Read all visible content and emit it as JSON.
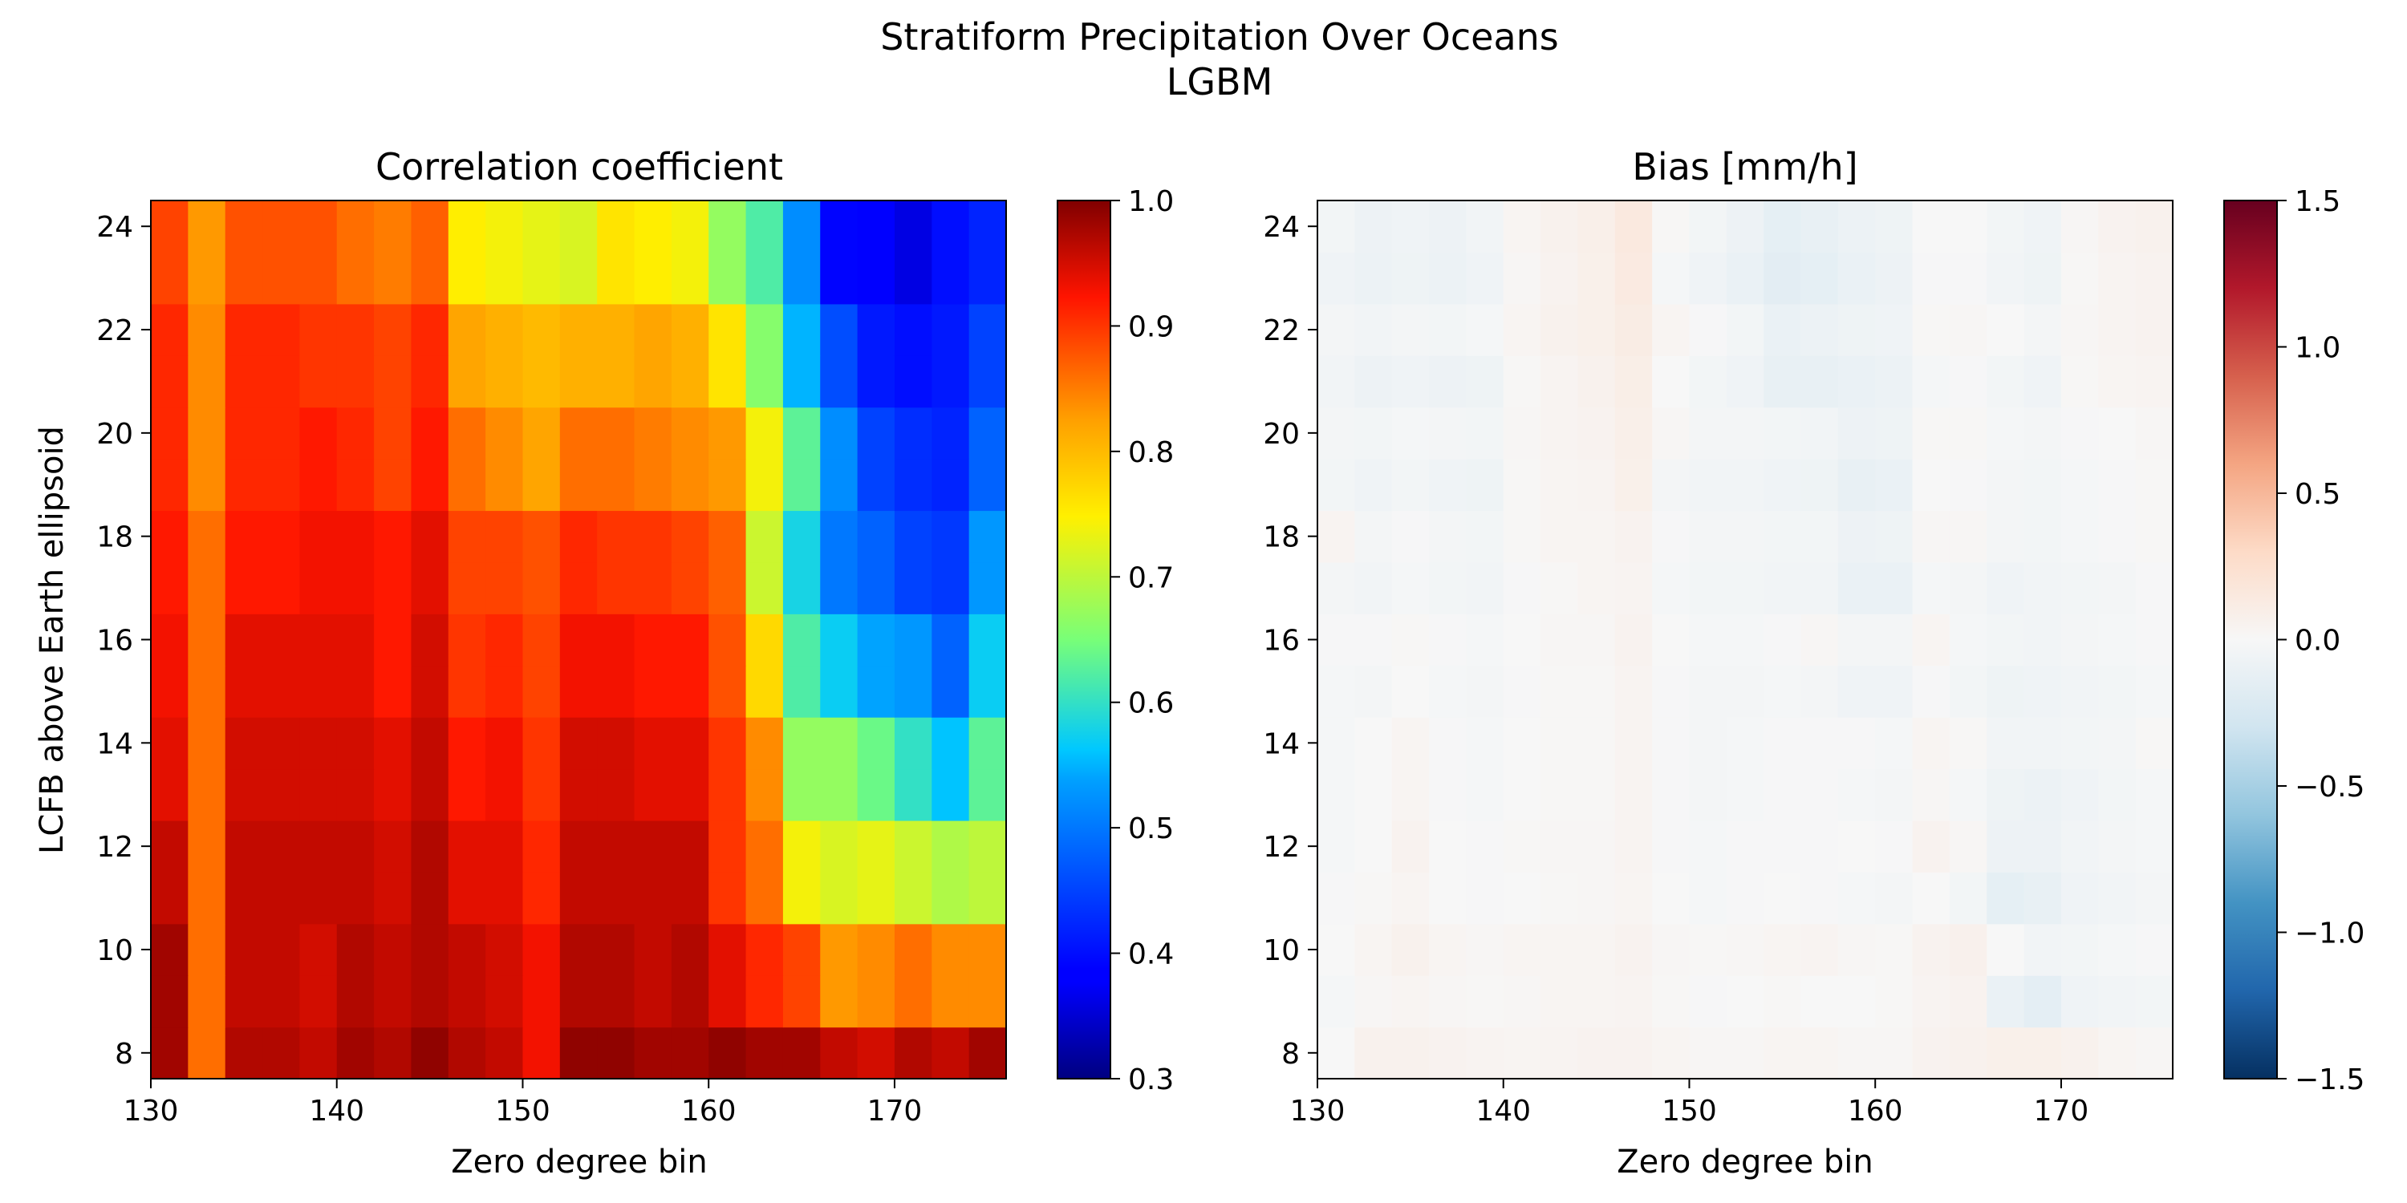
{
  "figure": {
    "title_line1": "Stratiform Precipitation Over Oceans",
    "title_line2": "LGBM"
  },
  "chart_data": [
    {
      "type": "heatmap",
      "title": "Correlation coefficient",
      "xlabel": "Zero degree bin",
      "ylabel": "LCFB above Earth ellipsoid",
      "xlim": [
        130,
        176
      ],
      "ylim": [
        7.5,
        24.5
      ],
      "x_bin_edges_start": 130,
      "x_bin_width": 2,
      "y_bin_centers": [
        8,
        9,
        10,
        11,
        12,
        13,
        14,
        15,
        16,
        17,
        18,
        19,
        20,
        21,
        22,
        23,
        24
      ],
      "xticks": [
        130,
        140,
        150,
        160,
        170
      ],
      "yticks": [
        8,
        10,
        12,
        14,
        16,
        18,
        20,
        22,
        24
      ],
      "colormap": "jet",
      "colorbar": {
        "vmin": 0.3,
        "vmax": 1.0,
        "ticks": [
          "0.3",
          "0.4",
          "0.5",
          "0.6",
          "0.7",
          "0.8",
          "0.9",
          "1.0"
        ]
      },
      "z_rows_bottom_to_top": [
        [
          0.98,
          0.86,
          0.97,
          0.97,
          0.96,
          0.98,
          0.97,
          0.99,
          0.97,
          0.96,
          0.93,
          0.99,
          0.99,
          0.98,
          0.98,
          0.99,
          0.98,
          0.98,
          0.96,
          0.95,
          0.97,
          0.96,
          0.98
        ],
        [
          0.98,
          0.86,
          0.96,
          0.96,
          0.95,
          0.97,
          0.96,
          0.97,
          0.96,
          0.95,
          0.93,
          0.97,
          0.97,
          0.96,
          0.97,
          0.94,
          0.91,
          0.89,
          0.83,
          0.84,
          0.86,
          0.84,
          0.84
        ],
        [
          0.98,
          0.86,
          0.96,
          0.96,
          0.95,
          0.97,
          0.96,
          0.97,
          0.96,
          0.95,
          0.93,
          0.97,
          0.97,
          0.96,
          0.97,
          0.94,
          0.91,
          0.89,
          0.83,
          0.84,
          0.86,
          0.84,
          0.84
        ],
        [
          0.96,
          0.86,
          0.96,
          0.96,
          0.96,
          0.96,
          0.95,
          0.97,
          0.94,
          0.94,
          0.91,
          0.96,
          0.96,
          0.96,
          0.96,
          0.9,
          0.86,
          0.74,
          0.72,
          0.73,
          0.71,
          0.69,
          0.7
        ],
        [
          0.96,
          0.86,
          0.96,
          0.96,
          0.96,
          0.96,
          0.95,
          0.97,
          0.94,
          0.94,
          0.91,
          0.96,
          0.96,
          0.96,
          0.96,
          0.9,
          0.86,
          0.74,
          0.72,
          0.73,
          0.71,
          0.69,
          0.7
        ],
        [
          0.94,
          0.86,
          0.95,
          0.95,
          0.95,
          0.95,
          0.94,
          0.96,
          0.92,
          0.93,
          0.9,
          0.95,
          0.95,
          0.94,
          0.94,
          0.9,
          0.84,
          0.67,
          0.67,
          0.64,
          0.6,
          0.56,
          0.63
        ],
        [
          0.94,
          0.86,
          0.95,
          0.95,
          0.95,
          0.95,
          0.94,
          0.96,
          0.92,
          0.93,
          0.9,
          0.95,
          0.95,
          0.94,
          0.94,
          0.9,
          0.84,
          0.67,
          0.67,
          0.64,
          0.6,
          0.56,
          0.63
        ],
        [
          0.93,
          0.86,
          0.94,
          0.94,
          0.94,
          0.94,
          0.92,
          0.95,
          0.9,
          0.91,
          0.89,
          0.93,
          0.93,
          0.92,
          0.92,
          0.88,
          0.77,
          0.62,
          0.57,
          0.54,
          0.53,
          0.48,
          0.57
        ],
        [
          0.93,
          0.86,
          0.94,
          0.94,
          0.94,
          0.94,
          0.92,
          0.95,
          0.9,
          0.91,
          0.89,
          0.93,
          0.93,
          0.92,
          0.92,
          0.88,
          0.77,
          0.62,
          0.57,
          0.54,
          0.53,
          0.48,
          0.57
        ],
        [
          0.92,
          0.86,
          0.92,
          0.92,
          0.93,
          0.93,
          0.92,
          0.94,
          0.89,
          0.89,
          0.88,
          0.91,
          0.9,
          0.9,
          0.89,
          0.87,
          0.71,
          0.58,
          0.5,
          0.48,
          0.45,
          0.44,
          0.53
        ],
        [
          0.92,
          0.86,
          0.92,
          0.92,
          0.93,
          0.93,
          0.92,
          0.94,
          0.89,
          0.89,
          0.88,
          0.91,
          0.9,
          0.9,
          0.89,
          0.87,
          0.71,
          0.58,
          0.5,
          0.48,
          0.45,
          0.44,
          0.53
        ],
        [
          0.91,
          0.84,
          0.91,
          0.91,
          0.92,
          0.91,
          0.89,
          0.92,
          0.86,
          0.84,
          0.82,
          0.86,
          0.86,
          0.85,
          0.84,
          0.83,
          0.74,
          0.63,
          0.52,
          0.45,
          0.43,
          0.42,
          0.48
        ],
        [
          0.91,
          0.84,
          0.91,
          0.91,
          0.92,
          0.91,
          0.89,
          0.92,
          0.86,
          0.84,
          0.82,
          0.86,
          0.86,
          0.85,
          0.84,
          0.83,
          0.74,
          0.63,
          0.52,
          0.45,
          0.43,
          0.42,
          0.48
        ],
        [
          0.91,
          0.84,
          0.91,
          0.91,
          0.9,
          0.9,
          0.89,
          0.91,
          0.82,
          0.81,
          0.8,
          0.81,
          0.81,
          0.82,
          0.81,
          0.76,
          0.66,
          0.55,
          0.46,
          0.41,
          0.4,
          0.41,
          0.45
        ],
        [
          0.91,
          0.84,
          0.91,
          0.91,
          0.9,
          0.9,
          0.89,
          0.91,
          0.82,
          0.81,
          0.8,
          0.81,
          0.81,
          0.82,
          0.81,
          0.76,
          0.66,
          0.55,
          0.46,
          0.41,
          0.4,
          0.41,
          0.45
        ],
        [
          0.89,
          0.83,
          0.88,
          0.88,
          0.88,
          0.86,
          0.85,
          0.87,
          0.75,
          0.74,
          0.73,
          0.72,
          0.76,
          0.75,
          0.74,
          0.67,
          0.62,
          0.52,
          0.39,
          0.38,
          0.36,
          0.4,
          0.42
        ],
        [
          0.89,
          0.83,
          0.88,
          0.88,
          0.88,
          0.86,
          0.85,
          0.87,
          0.75,
          0.74,
          0.73,
          0.72,
          0.76,
          0.75,
          0.74,
          0.67,
          0.62,
          0.52,
          0.39,
          0.38,
          0.36,
          0.4,
          0.42
        ]
      ]
    },
    {
      "type": "heatmap",
      "title": "Bias [mm/h]",
      "xlabel": "Zero degree bin",
      "ylabel": "",
      "xlim": [
        130,
        176
      ],
      "ylim": [
        7.5,
        24.5
      ],
      "x_bin_edges_start": 130,
      "x_bin_width": 2,
      "y_bin_centers": [
        8,
        9,
        10,
        11,
        12,
        13,
        14,
        15,
        16,
        17,
        18,
        19,
        20,
        21,
        22,
        23,
        24
      ],
      "xticks": [
        130,
        140,
        150,
        160,
        170
      ],
      "yticks": [
        8,
        10,
        12,
        14,
        16,
        18,
        20,
        22,
        24
      ],
      "colormap": "RdBu_r",
      "colorbar": {
        "vmin": -1.5,
        "vmax": 1.5,
        "ticks": [
          "1.5",
          "1.0",
          "0.5",
          "0.0",
          "−0.5",
          "−1.0",
          "−1.5"
        ]
      },
      "z_rows_bottom_to_top": [
        [
          0.0,
          0.06,
          0.06,
          0.05,
          0.04,
          0.03,
          0.04,
          0.05,
          0.05,
          0.03,
          0.02,
          0.02,
          0.03,
          0.03,
          0.02,
          0.02,
          0.05,
          0.06,
          0.08,
          0.08,
          0.06,
          0.03,
          0.02
        ],
        [
          -0.02,
          0.02,
          0.03,
          0.02,
          0.01,
          0.02,
          0.03,
          0.03,
          0.04,
          0.01,
          -0.01,
          0.0,
          0.01,
          0.0,
          0.0,
          0.01,
          0.04,
          0.05,
          -0.1,
          -0.15,
          -0.06,
          -0.05,
          -0.04
        ],
        [
          0.0,
          0.03,
          0.06,
          0.03,
          0.02,
          0.03,
          0.03,
          0.03,
          0.05,
          0.02,
          0.01,
          0.02,
          0.03,
          0.04,
          0.02,
          0.01,
          0.05,
          0.07,
          0.0,
          -0.05,
          -0.04,
          -0.02,
          -0.01
        ],
        [
          -0.01,
          0.01,
          0.03,
          0.0,
          -0.01,
          0.0,
          0.01,
          0.02,
          0.03,
          0.0,
          -0.02,
          -0.01,
          0.0,
          -0.01,
          -0.02,
          -0.03,
          0.0,
          -0.04,
          -0.14,
          -0.12,
          -0.06,
          -0.05,
          -0.03
        ],
        [
          -0.02,
          0.0,
          0.05,
          0.0,
          -0.01,
          0.01,
          0.02,
          0.02,
          0.04,
          -0.01,
          -0.02,
          -0.01,
          -0.01,
          -0.01,
          0.0,
          -0.01,
          0.05,
          0.02,
          -0.08,
          -0.08,
          -0.05,
          -0.03,
          -0.02
        ],
        [
          -0.02,
          0.0,
          0.03,
          -0.01,
          -0.02,
          0.0,
          0.01,
          0.01,
          0.04,
          -0.01,
          -0.03,
          -0.02,
          -0.01,
          -0.01,
          -0.02,
          -0.03,
          0.02,
          -0.02,
          -0.07,
          -0.09,
          -0.06,
          -0.04,
          -0.02
        ],
        [
          -0.02,
          0.0,
          0.03,
          -0.01,
          -0.02,
          0.0,
          0.01,
          0.01,
          0.04,
          -0.01,
          -0.03,
          -0.02,
          -0.01,
          -0.01,
          -0.01,
          -0.02,
          0.03,
          0.01,
          -0.05,
          -0.05,
          -0.04,
          -0.03,
          0.01
        ],
        [
          -0.02,
          -0.03,
          0.0,
          -0.02,
          -0.03,
          -0.01,
          0.01,
          0.01,
          0.04,
          -0.01,
          -0.03,
          -0.03,
          -0.02,
          -0.03,
          -0.06,
          -0.06,
          -0.01,
          -0.04,
          -0.07,
          -0.06,
          -0.05,
          -0.04,
          -0.02
        ],
        [
          -0.01,
          -0.01,
          0.01,
          -0.01,
          -0.02,
          0.0,
          0.02,
          0.02,
          0.05,
          0.0,
          -0.02,
          -0.02,
          -0.01,
          0.02,
          -0.03,
          -0.03,
          0.03,
          -0.02,
          -0.04,
          -0.05,
          -0.03,
          -0.02,
          -0.01
        ],
        [
          -0.03,
          -0.05,
          -0.02,
          -0.04,
          -0.05,
          -0.01,
          0.01,
          0.03,
          0.04,
          -0.02,
          -0.04,
          -0.04,
          -0.05,
          -0.05,
          -0.1,
          -0.1,
          -0.02,
          -0.03,
          -0.06,
          -0.05,
          -0.04,
          -0.03,
          -0.01
        ],
        [
          0.04,
          -0.03,
          -0.01,
          -0.03,
          -0.04,
          0.01,
          0.03,
          0.03,
          0.05,
          -0.01,
          -0.03,
          -0.03,
          -0.04,
          -0.04,
          -0.08,
          -0.07,
          0.02,
          0.02,
          -0.03,
          -0.04,
          -0.02,
          -0.01,
          0.01
        ],
        [
          -0.04,
          -0.06,
          -0.04,
          -0.06,
          -0.07,
          0.01,
          0.03,
          0.04,
          0.08,
          -0.03,
          -0.05,
          -0.05,
          -0.06,
          -0.07,
          -0.12,
          -0.1,
          0.0,
          -0.01,
          -0.03,
          -0.04,
          -0.02,
          -0.01,
          0.01
        ],
        [
          -0.03,
          -0.04,
          -0.02,
          -0.03,
          -0.04,
          0.02,
          0.04,
          0.05,
          0.09,
          0.02,
          -0.03,
          -0.03,
          -0.04,
          -0.05,
          -0.08,
          -0.07,
          0.01,
          0.01,
          -0.02,
          -0.03,
          -0.01,
          0.0,
          0.02
        ],
        [
          -0.05,
          -0.08,
          -0.06,
          -0.08,
          -0.07,
          0.01,
          0.04,
          0.06,
          0.1,
          0.0,
          -0.04,
          -0.06,
          -0.12,
          -0.12,
          -0.1,
          -0.09,
          -0.02,
          -0.01,
          -0.04,
          -0.06,
          0.01,
          0.03,
          0.04
        ],
        [
          -0.03,
          -0.05,
          -0.03,
          -0.04,
          -0.02,
          0.03,
          0.06,
          0.08,
          0.12,
          0.03,
          -0.01,
          -0.04,
          -0.1,
          -0.09,
          -0.07,
          -0.06,
          0.01,
          0.02,
          0.0,
          -0.03,
          0.02,
          0.04,
          0.05
        ],
        [
          -0.06,
          -0.09,
          -0.07,
          -0.09,
          -0.06,
          0.02,
          0.05,
          0.08,
          0.14,
          -0.02,
          -0.06,
          -0.1,
          -0.16,
          -0.14,
          -0.1,
          -0.08,
          -0.01,
          -0.01,
          -0.05,
          -0.07,
          0.01,
          0.04,
          0.05
        ],
        [
          -0.04,
          -0.08,
          -0.06,
          -0.08,
          -0.05,
          0.03,
          0.06,
          0.09,
          0.15,
          0.01,
          -0.04,
          -0.08,
          -0.14,
          -0.12,
          -0.09,
          -0.07,
          0.0,
          0.0,
          -0.04,
          -0.06,
          0.02,
          0.05,
          0.06
        ]
      ]
    }
  ]
}
